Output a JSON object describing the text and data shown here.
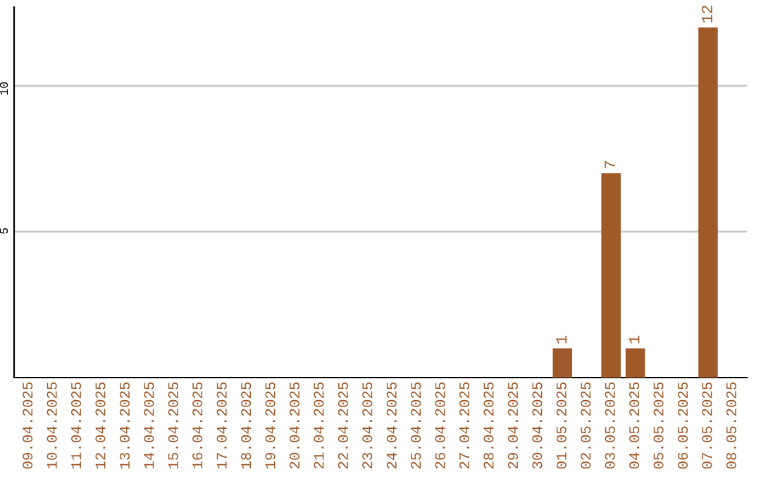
{
  "chart_data": {
    "type": "bar",
    "categories": [
      "09.04.2025",
      "10.04.2025",
      "11.04.2025",
      "12.04.2025",
      "13.04.2025",
      "14.04.2025",
      "15.04.2025",
      "16.04.2025",
      "17.04.2025",
      "18.04.2025",
      "19.04.2025",
      "20.04.2025",
      "21.04.2025",
      "22.04.2025",
      "23.04.2025",
      "24.04.2025",
      "25.04.2025",
      "26.04.2025",
      "27.04.2025",
      "28.04.2025",
      "29.04.2025",
      "30.04.2025",
      "01.05.2025",
      "02.05.2025",
      "03.05.2025",
      "04.05.2025",
      "05.05.2025",
      "06.05.2025",
      "07.05.2025",
      "08.05.2025"
    ],
    "values": [
      0,
      0,
      0,
      0,
      0,
      0,
      0,
      0,
      0,
      0,
      0,
      0,
      0,
      0,
      0,
      0,
      0,
      0,
      0,
      0,
      0,
      0,
      1,
      0,
      7,
      1,
      0,
      0,
      12,
      0
    ],
    "value_labels": [
      null,
      null,
      null,
      null,
      null,
      null,
      null,
      null,
      null,
      null,
      null,
      null,
      null,
      null,
      null,
      null,
      null,
      null,
      null,
      null,
      null,
      null,
      "1",
      null,
      "7",
      "1",
      null,
      null,
      "12",
      null
    ],
    "color": "#a0592a",
    "ylim": [
      0,
      12.7
    ],
    "yticks": [
      5,
      10
    ],
    "grid": "y"
  }
}
